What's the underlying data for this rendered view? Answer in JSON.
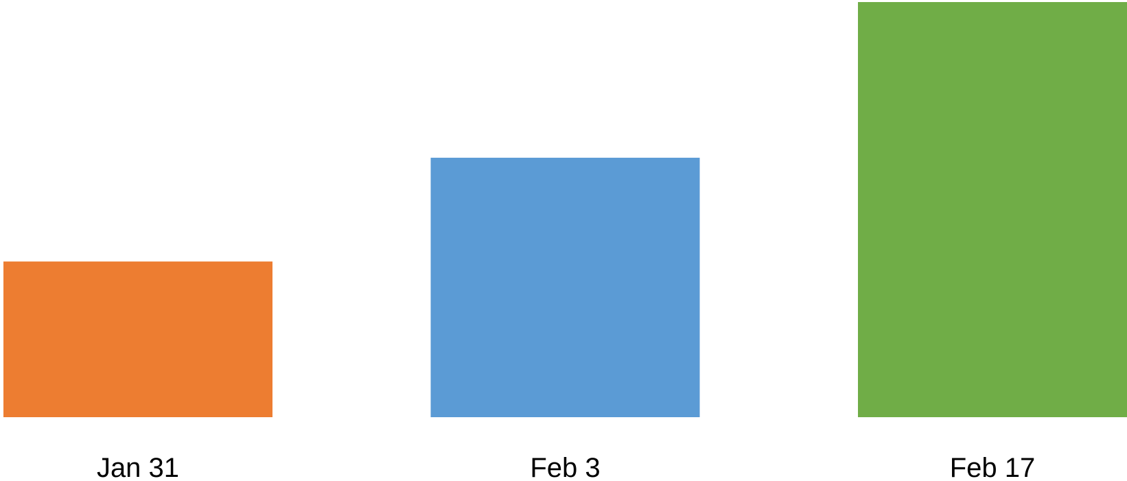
{
  "chart_data": {
    "type": "bar",
    "categories": [
      "Jan 31",
      "Feb 3",
      "Feb 17"
    ],
    "values": [
      1.5,
      2.5,
      4
    ],
    "colors": [
      "#ED7D31",
      "#5B9BD5",
      "#70AD47"
    ],
    "title": "",
    "xlabel": "",
    "ylabel": "",
    "ylim": [
      0,
      4
    ],
    "grid": false,
    "legend": "none"
  }
}
